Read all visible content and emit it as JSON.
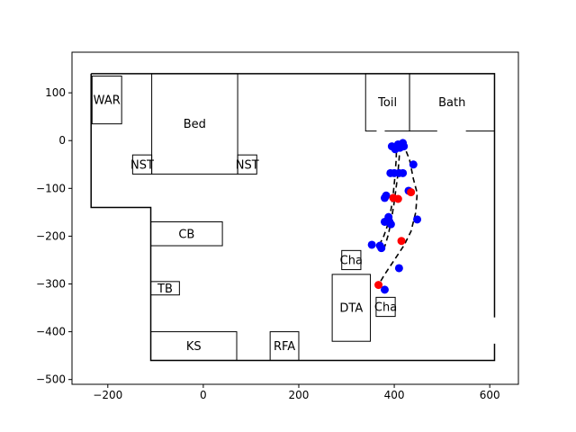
{
  "chart_data": {
    "type": "scatter",
    "title": "",
    "xlabel": "",
    "ylabel": "",
    "xlim": [
      -275,
      660
    ],
    "ylim": [
      -510,
      185
    ],
    "xticks": [
      -200,
      0,
      200,
      400,
      600
    ],
    "yticks": [
      -500,
      -400,
      -300,
      -200,
      -100,
      0,
      100
    ],
    "grid": false,
    "legend": "none",
    "colors": {
      "blue": "#0000ff",
      "red": "#ff0000",
      "line": "#000000"
    },
    "outline": [
      [
        -235,
        140
      ],
      [
        610,
        140
      ],
      [
        610,
        -460
      ],
      [
        -110,
        -460
      ],
      [
        -110,
        -140
      ],
      [
        -235,
        -140
      ],
      [
        -235,
        140
      ]
    ],
    "door_gaps": [
      {
        "x1": 363,
        "y1": 20,
        "x2": 380,
        "y2": 20
      },
      {
        "x1": 490,
        "y1": 20,
        "x2": 550,
        "y2": 20
      },
      {
        "x1": 610,
        "y1": -370,
        "x2": 610,
        "y2": -425
      }
    ],
    "rooms": [
      {
        "label": "WAR",
        "x": -233,
        "y": 35,
        "w": 62,
        "h": 100
      },
      {
        "label": "Bed",
        "x": -108,
        "y": -70,
        "w": 180,
        "h": 210
      },
      {
        "label": "NST",
        "x": -148,
        "y": -70,
        "w": 40,
        "h": 40
      },
      {
        "label": "NST",
        "x": 72,
        "y": -70,
        "w": 40,
        "h": 40
      },
      {
        "label": "Toil",
        "x": 340,
        "y": 20,
        "w": 92,
        "h": 120
      },
      {
        "label": "Bath",
        "x": 432,
        "y": 20,
        "w": 178,
        "h": 120
      },
      {
        "label": "CB",
        "x": -110,
        "y": -220,
        "w": 150,
        "h": 50
      },
      {
        "label": "TB",
        "x": -110,
        "y": -323,
        "w": 60,
        "h": 28
      },
      {
        "label": "KS",
        "x": -110,
        "y": -460,
        "w": 180,
        "h": 60
      },
      {
        "label": "RFA",
        "x": 140,
        "y": -460,
        "w": 60,
        "h": 60
      },
      {
        "label": "DTA",
        "x": 270,
        "y": -420,
        "w": 80,
        "h": 140
      },
      {
        "label": "Cha",
        "x": 290,
        "y": -270,
        "w": 40,
        "h": 40
      },
      {
        "label": "Cha",
        "x": 362,
        "y": -368,
        "w": 40,
        "h": 40
      }
    ],
    "series": [
      {
        "color": "blue",
        "x": [
          395,
          408,
          418,
          420,
          412,
          402,
          392,
          400,
          410,
          418,
          440,
          383,
          380,
          430,
          388,
          390,
          380,
          393,
          448,
          353,
          370,
          373,
          410,
          380
        ],
        "y": [
          -12,
          -8,
          -5,
          -12,
          -15,
          -18,
          -68,
          -68,
          -68,
          -68,
          -50,
          -115,
          -120,
          -105,
          -160,
          -170,
          -170,
          -175,
          -165,
          -218,
          -220,
          -225,
          -267,
          -312
        ]
      },
      {
        "color": "red",
        "x": [
          435,
          398,
          408,
          415,
          367
        ],
        "y": [
          -108,
          -120,
          -122,
          -210,
          -302
        ]
      }
    ],
    "paths": [
      {
        "x": [
          418,
          432,
          440,
          448,
          445,
          435,
          420,
          400,
          380,
          365
        ],
        "y": [
          -5,
          -40,
          -80,
          -110,
          -150,
          -190,
          -220,
          -250,
          -280,
          -305
        ]
      },
      {
        "x": [
          405,
          404,
          401,
          398,
          394,
          390,
          385,
          378,
          368
        ],
        "y": [
          -5,
          -40,
          -80,
          -110,
          -140,
          -160,
          -180,
          -200,
          -220
        ]
      },
      {
        "x": [
          412,
          410,
          407,
          403,
          399,
          394,
          388,
          380
        ],
        "y": [
          -12,
          -40,
          -75,
          -105,
          -135,
          -165,
          -195,
          -222
        ]
      }
    ]
  }
}
